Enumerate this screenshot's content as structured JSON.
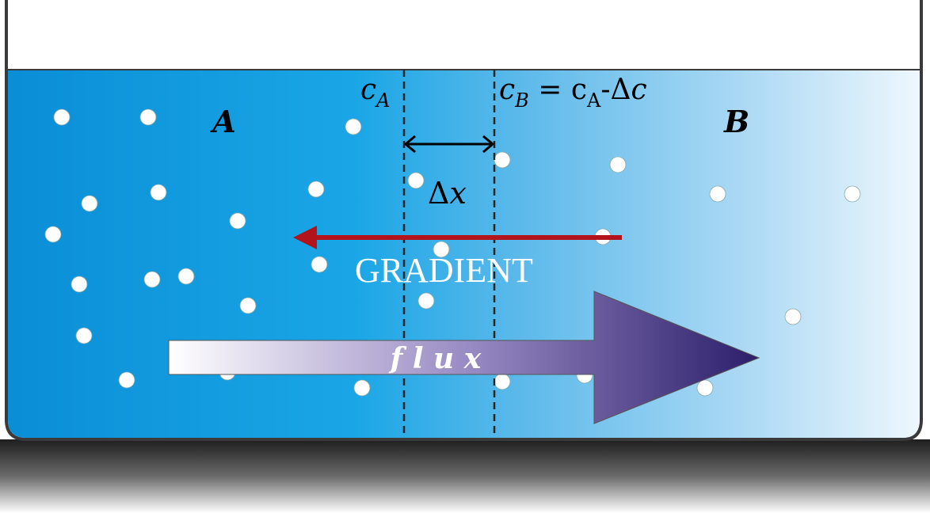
{
  "labels": {
    "region_a": "A",
    "region_b": "B",
    "c_a": [
      "c",
      "A"
    ],
    "c_b": [
      "c",
      "B",
      " = c",
      "A",
      "-Δ",
      "c"
    ],
    "delta_x": [
      "Δ",
      "x"
    ],
    "gradient": "GRADIENT",
    "flux": "f l u x"
  }
}
